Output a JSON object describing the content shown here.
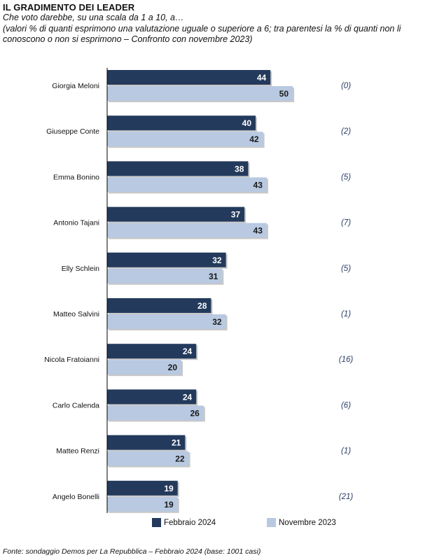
{
  "header": {
    "title": "IL GRADIMENTO DEI LEADER",
    "subtitle": "Che voto darebbe, su una scala da 1 a 10, a…",
    "note": "(valori % di quanti esprimono una valutazione uguale o superiore a 6; tra parentesi la % di quanti non li conoscono o non si esprimono – Confronto con novembre 2023)"
  },
  "colors": {
    "series_2024": "#233a5c",
    "series_2023": "#b8c9e1",
    "paren": "#2a3f66",
    "axis": "#000000"
  },
  "chart_data": {
    "type": "bar",
    "orientation": "horizontal",
    "categories": [
      "Giorgia Meloni",
      "Giuseppe Conte",
      "Emma Bonino",
      "Antonio Tajani",
      "Elly Schlein",
      "Matteo Salvini",
      "Nicola Fratoianni",
      "Carlo Calenda",
      "Matteo Renzi",
      "Angelo Bonelli"
    ],
    "series": [
      {
        "name": "Febbraio 2024",
        "values": [
          44,
          40,
          38,
          37,
          32,
          28,
          24,
          24,
          21,
          19
        ]
      },
      {
        "name": "Novembre 2023",
        "values": [
          50,
          42,
          43,
          43,
          31,
          32,
          20,
          26,
          22,
          19
        ]
      }
    ],
    "not_known": [
      "(0)",
      "(2)",
      "(5)",
      "(7)",
      "(5)",
      "(1)",
      "(16)",
      "(6)",
      "(1)",
      "(21)"
    ],
    "xlim": [
      0,
      100
    ],
    "grid": false,
    "legend_position": "bottom"
  },
  "source": "Fonte: sondaggio Demos per La Repubblica – Febbraio 2024 (base: 1001 casi)"
}
